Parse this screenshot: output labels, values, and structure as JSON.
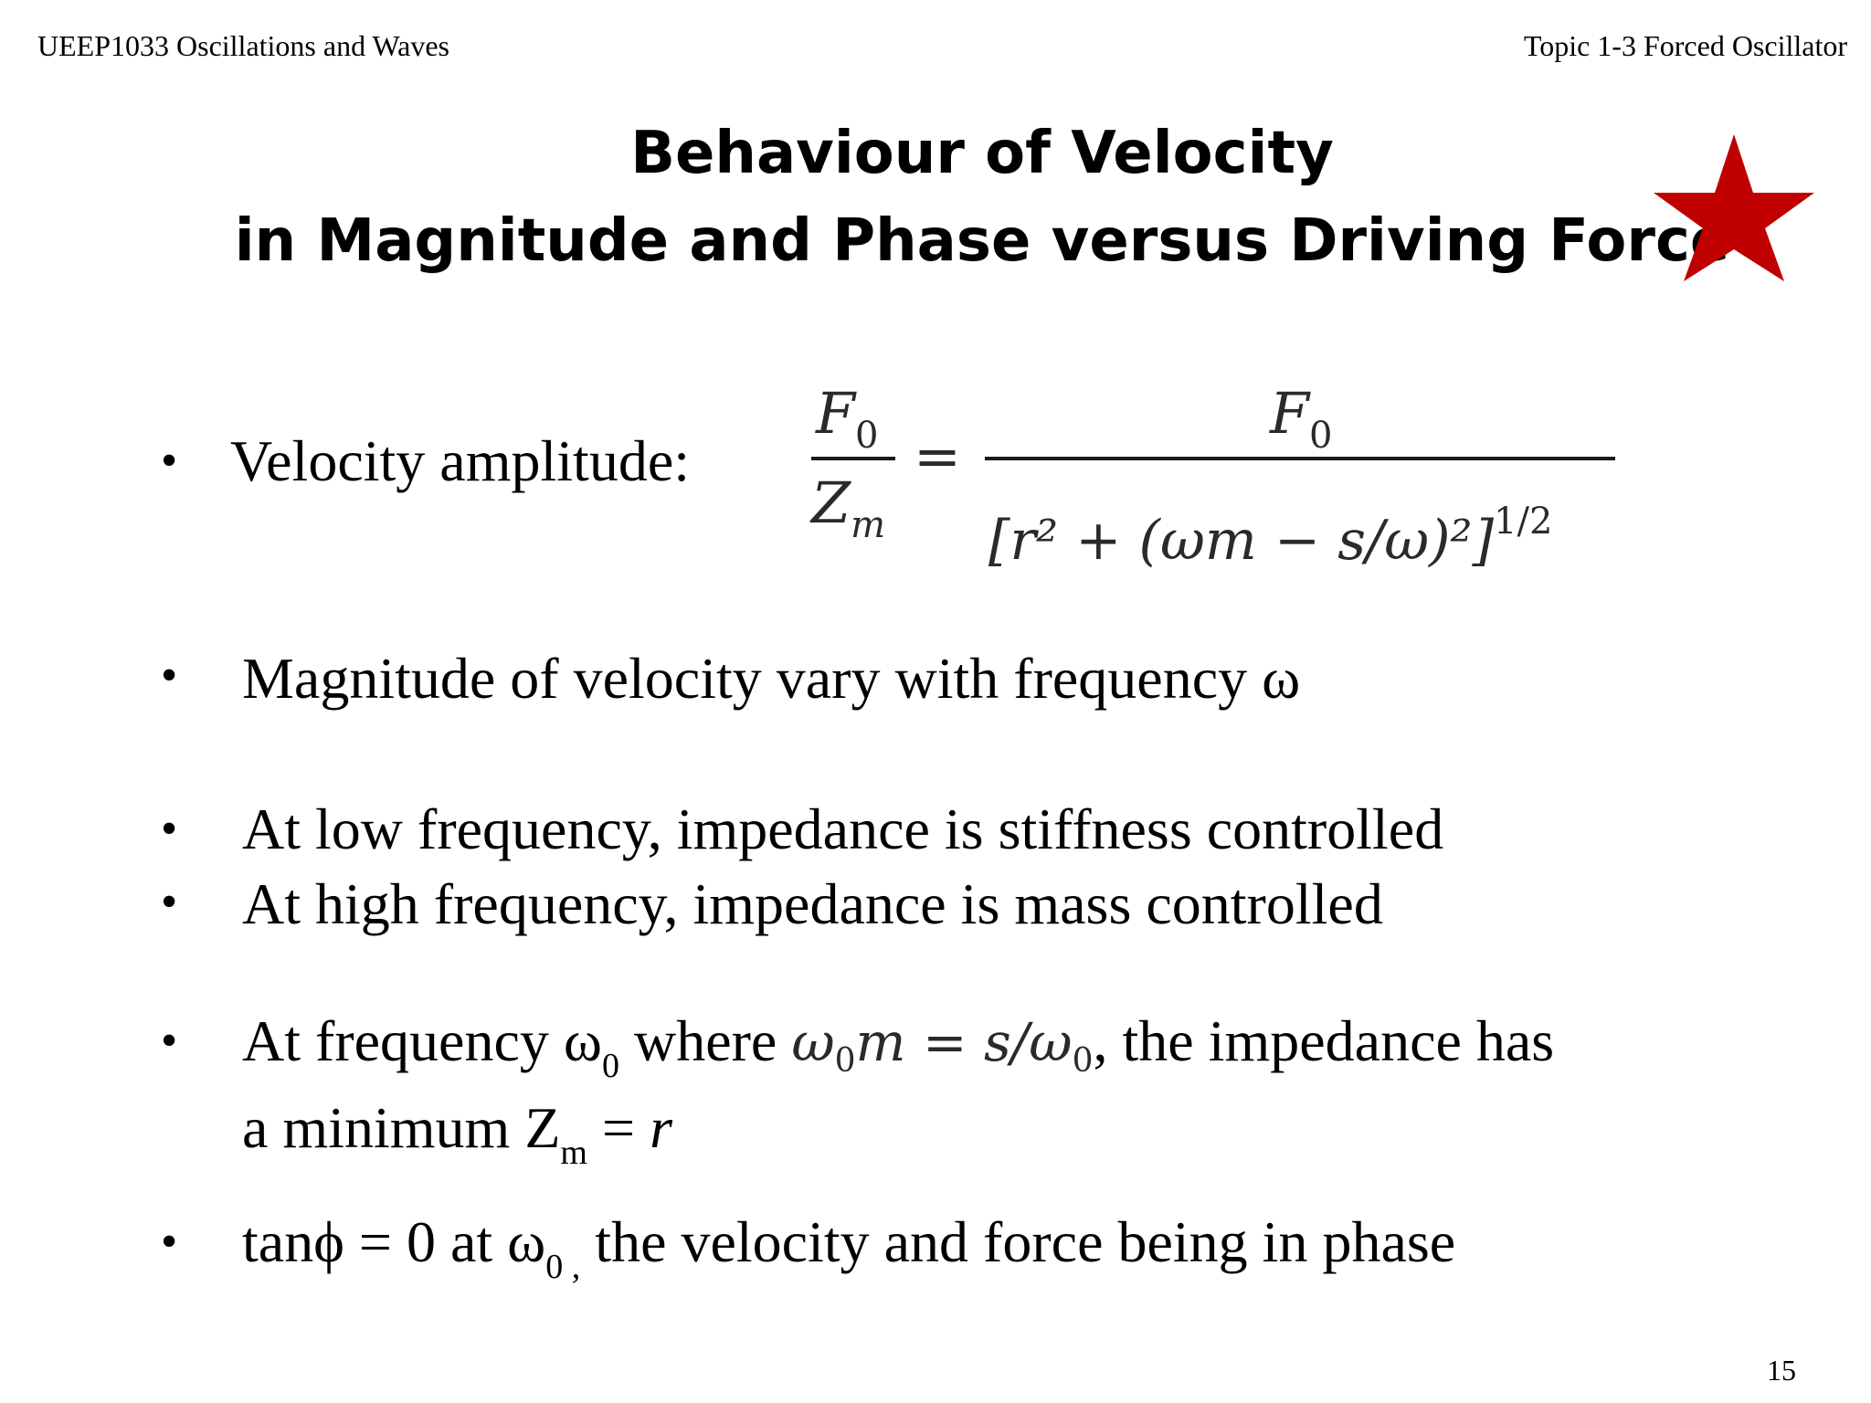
{
  "header": {
    "course": "UEEP1033 Oscillations and Waves",
    "topic": "Topic 1-3 Forced Oscillator"
  },
  "title": {
    "line1": "Behaviour of Velocity",
    "line2": "in Magnitude and Phase versus Driving Force"
  },
  "accent_color": "#c00000",
  "icon": "star-icon",
  "bullet_symbol": "•",
  "bullets": {
    "b1": {
      "label": "Velocity amplitude:"
    },
    "b2": {
      "text": "Magnitude of velocity vary with frequency ω"
    },
    "b3": {
      "text": "At low frequency, impedance is stiffness controlled"
    },
    "b4": {
      "text": "At high frequency, impedance is mass controlled"
    },
    "b5": {
      "pre": "At frequency ω",
      "sub0": "0",
      "mid": " where ",
      "post": ", the impedance has",
      "line2_pre": "a minimum Z",
      "sub_m": "m",
      "line2_post": " = ",
      "r": "r"
    },
    "b6": {
      "pre": "tanϕ = 0 at ω",
      "sub0": "0 ,",
      "post": " the velocity and force being in phase"
    }
  },
  "equation": {
    "num_left": "F",
    "num_left_sub": "0",
    "den_left": "Z",
    "den_left_sub": "m",
    "equals": "=",
    "num_right": "F",
    "num_right_sub": "0",
    "den_right": "[r² + (ωm − s/ω)²]",
    "den_right_exp": "1/2"
  },
  "inline_equation": {
    "lhs": "ω",
    "lhs_sub": "0",
    "lhs_m": "m",
    "eq": " = ",
    "rhs": "s/ω",
    "rhs_sub": "0"
  },
  "page_number": "15"
}
